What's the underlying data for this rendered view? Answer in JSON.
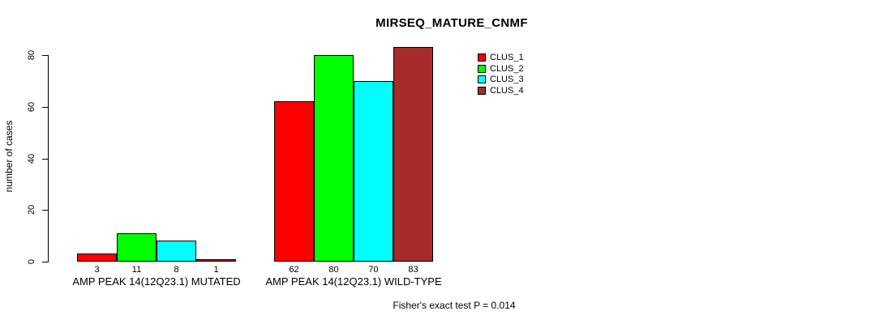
{
  "chart_data": {
    "type": "bar",
    "title": "MIRSEQ_MATURE_CNMF",
    "xlabel": "",
    "ylabel": "number of cases",
    "ylim": [
      0,
      80
    ],
    "yticks": [
      0,
      20,
      40,
      60,
      80
    ],
    "grid": false,
    "legend_position": "top-right",
    "bar_value_labels": true,
    "categories": [
      "AMP PEAK 14(12Q23.1) MUTATED",
      "AMP PEAK 14(12Q23.1) WILD-TYPE"
    ],
    "series": [
      {
        "name": "CLUS_1",
        "color": "#ff0000",
        "values": [
          3,
          62
        ]
      },
      {
        "name": "CLUS_2",
        "color": "#00ff00",
        "values": [
          11,
          80
        ]
      },
      {
        "name": "CLUS_3",
        "color": "#00ffff",
        "values": [
          8,
          70
        ]
      },
      {
        "name": "CLUS_4",
        "color": "#a52a2a",
        "values": [
          1,
          83
        ]
      }
    ],
    "annotation": "Fisher's exact test P = 0.014"
  },
  "colors": {
    "background": "#ffffff",
    "axis": "#000000",
    "text": "#000000",
    "bar_border": "#000000"
  }
}
